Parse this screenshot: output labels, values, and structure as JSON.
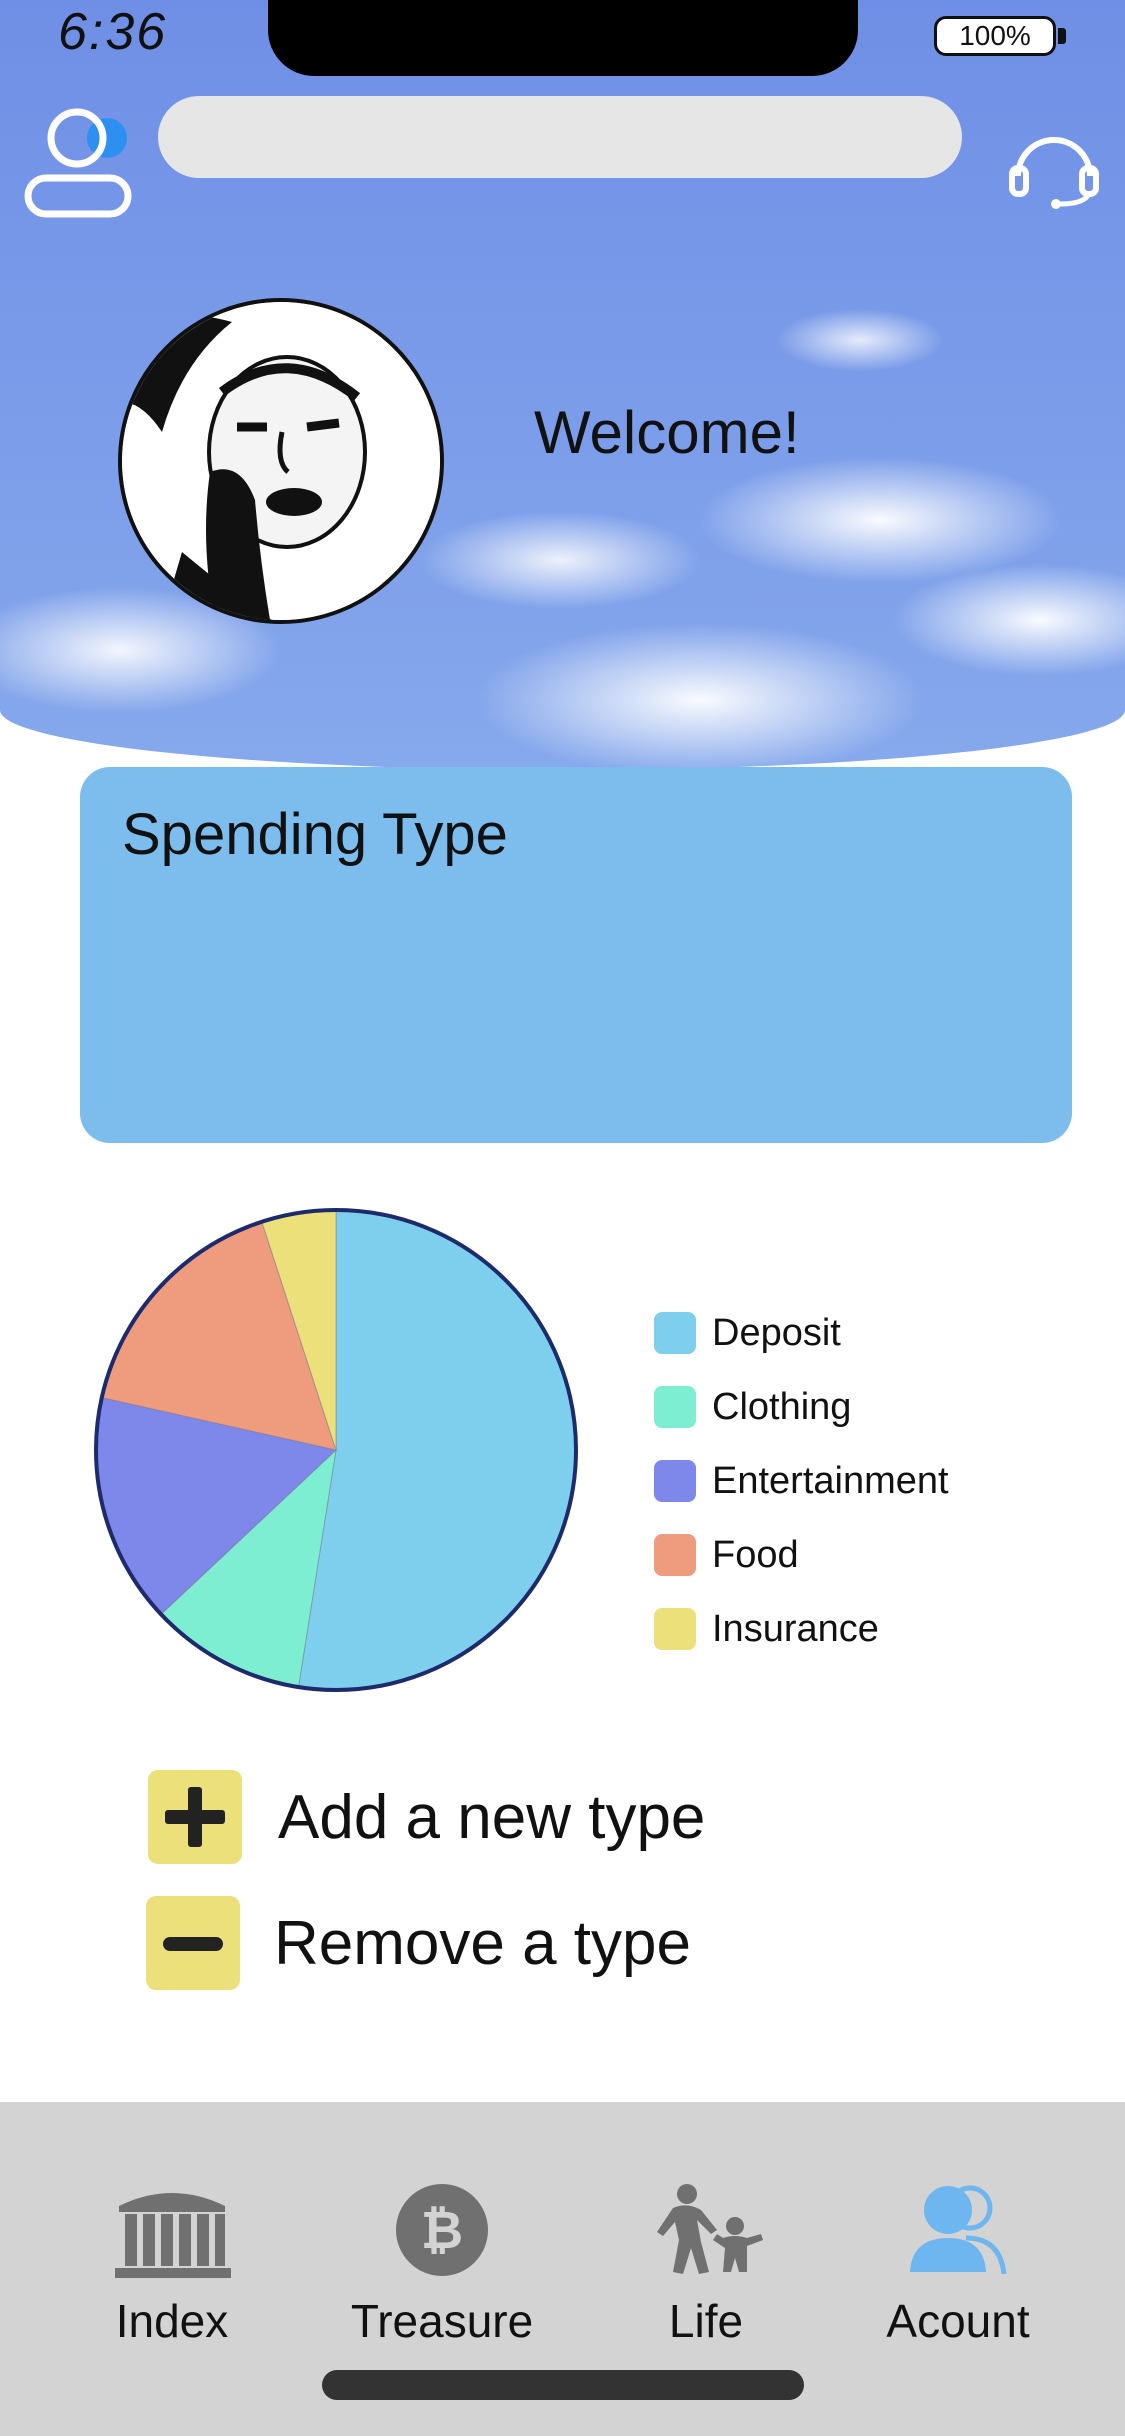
{
  "status_bar": {
    "time": "6:36",
    "battery": "100%"
  },
  "header": {
    "search_placeholder": "",
    "welcome": "Welcome!"
  },
  "card": {
    "title": "Spending Type"
  },
  "chart_data": {
    "type": "pie",
    "categories": [
      "Deposit",
      "Clothing",
      "Entertainment",
      "Food",
      "Insurance"
    ],
    "values": [
      52.5,
      10.5,
      15.5,
      16.5,
      5.0
    ],
    "colors": [
      "#7ecfee",
      "#7eeed3",
      "#7e87ea",
      "#ee9b7e",
      "#ece07a"
    ],
    "legend_position": "right"
  },
  "actions": {
    "add_label": "Add a new type",
    "remove_label": "Remove a type"
  },
  "tabs": [
    {
      "label": "Index",
      "icon": "bank-icon",
      "active": false
    },
    {
      "label": "Treasure",
      "icon": "bitcoin-icon",
      "active": false
    },
    {
      "label": "Life",
      "icon": "family-icon",
      "active": false
    },
    {
      "label": "Acount",
      "icon": "users-icon",
      "active": true
    }
  ],
  "colors": {
    "sky": "#7e9eea",
    "card": "#7dbdee",
    "accent": "#ece07a",
    "tabbar": "#d3d3d3",
    "active_icon": "#6db6ef",
    "inactive_icon": "#707070"
  }
}
